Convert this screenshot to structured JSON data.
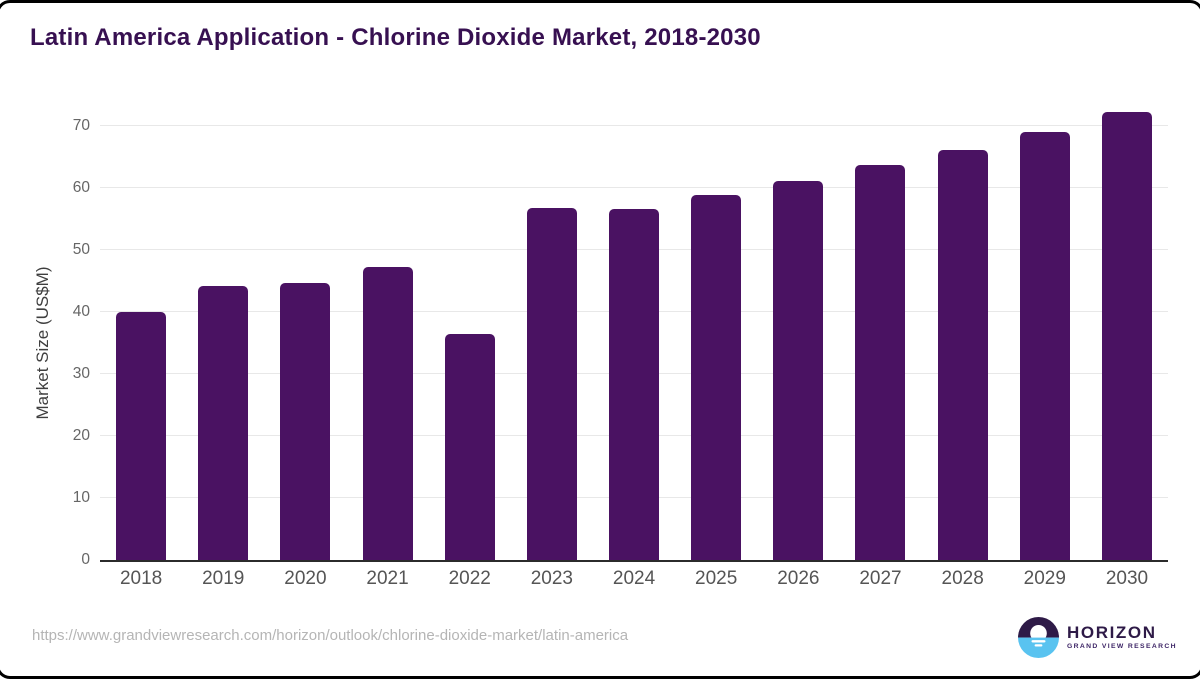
{
  "chart_data": {
    "type": "bar",
    "title": "Latin America Application - Chlorine Dioxide Market, 2018-2030",
    "categories": [
      "2018",
      "2019",
      "2020",
      "2021",
      "2022",
      "2023",
      "2024",
      "2025",
      "2026",
      "2027",
      "2028",
      "2029",
      "2030"
    ],
    "values": [
      40.0,
      44.2,
      44.7,
      47.3,
      36.5,
      56.8,
      56.6,
      58.9,
      61.1,
      63.7,
      66.2,
      69.1,
      72.2
    ],
    "xlabel": "",
    "ylabel": "Market Size (US$M)",
    "ylim": [
      0,
      70
    ],
    "yticks": [
      0,
      10,
      20,
      30,
      40,
      50,
      60,
      70
    ],
    "grid": true,
    "legend_position": "none",
    "bar_color": "#4a1262"
  },
  "footer": {
    "source_url": "https://www.grandviewresearch.com/horizon/outlook/chlorine-dioxide-market/latin-america",
    "logo": {
      "brand": "HORIZON",
      "tagline": "GRAND VIEW RESEARCH"
    }
  },
  "colors": {
    "title": "#371051",
    "bar": "#4a1262",
    "axis_line": "#2b2b2b",
    "gridline": "#e8e8e8",
    "tick_label": "#666666",
    "x_label": "#555555",
    "url_text": "#b5b5b5",
    "logo_dark": "#2e1a47",
    "logo_blue": "#59c3f0",
    "frame_border": "#000000"
  }
}
